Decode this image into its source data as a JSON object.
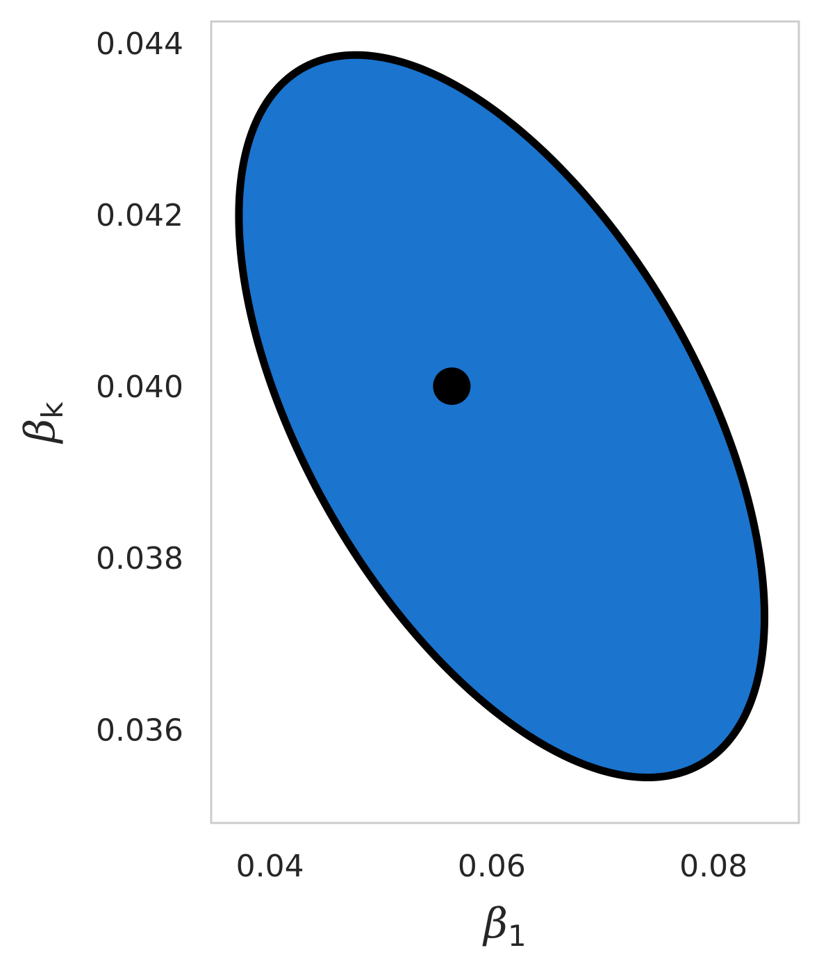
{
  "chart_data": {
    "type": "scatter",
    "title": "",
    "xlabel": {
      "base": "β",
      "sub": "1"
    },
    "ylabel": {
      "base": "β",
      "sub": "k"
    },
    "xlim": [
      0.0347,
      0.0877
    ],
    "ylim": [
      0.03491,
      0.04425
    ],
    "xticks": [
      0.04,
      0.06,
      0.08
    ],
    "xtick_labels": [
      "0.04",
      "0.06",
      "0.08"
    ],
    "yticks": [
      0.036,
      0.038,
      0.04,
      0.042,
      0.044
    ],
    "ytick_labels": [
      "0.036",
      "0.038",
      "0.040",
      "0.042",
      "0.044"
    ],
    "grid": false,
    "ellipse": {
      "center": [
        0.0609,
        0.03965
      ],
      "semi_axis_x": 0.0237,
      "semi_axis_y": 0.00421,
      "rho": -0.555,
      "fill_color": "#1b74cd",
      "edge_color": "#000000"
    },
    "point": {
      "x": 0.0564,
      "y": 0.04,
      "color": "#000000"
    },
    "frame_color": "#cccccc"
  }
}
